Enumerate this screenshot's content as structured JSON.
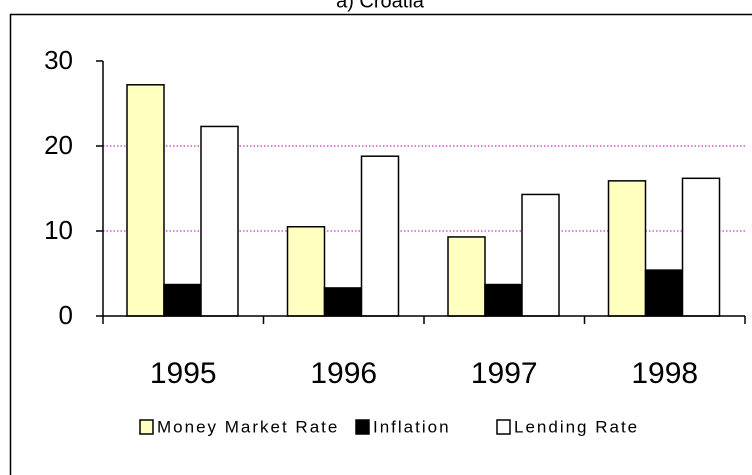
{
  "chart_data": {
    "type": "bar",
    "title": "a) Croatia",
    "categories": [
      "1995",
      "1996",
      "1997",
      "1998"
    ],
    "series": [
      {
        "name": "Money Market Rate",
        "color": "#ffffc0",
        "values": [
          27.2,
          10.5,
          9.3,
          15.9
        ]
      },
      {
        "name": "Inflation",
        "color": "#000000",
        "values": [
          3.7,
          3.3,
          3.7,
          5.4
        ]
      },
      {
        "name": "Lending Rate",
        "color": "#ffffff",
        "values": [
          22.3,
          18.8,
          14.3,
          16.2
        ]
      }
    ],
    "ylim": [
      0,
      30
    ],
    "yticks": [
      0,
      10,
      20,
      30
    ],
    "grid": true,
    "grid_color": "#c000c0",
    "legend": "bottom"
  }
}
